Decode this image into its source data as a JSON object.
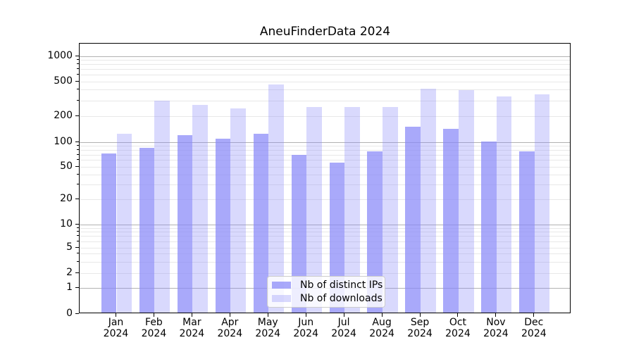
{
  "chart_data": {
    "type": "bar",
    "title": "AneuFinderData 2024",
    "months": [
      "Jan",
      "Feb",
      "Mar",
      "Apr",
      "May",
      "Jun",
      "Jul",
      "Aug",
      "Sep",
      "Oct",
      "Nov",
      "Dec"
    ],
    "year_line": "2024",
    "series": [
      {
        "name": "Nb of distinct IPs",
        "color": "#8888f8",
        "alpha": 0.72,
        "values": [
          73,
          85,
          120,
          110,
          125,
          70,
          56,
          78,
          150,
          143,
          102,
          77
        ]
      },
      {
        "name": "Nb of downloads",
        "color": "#8888f8",
        "alpha": 0.32,
        "values": [
          125,
          300,
          270,
          245,
          460,
          256,
          254,
          253,
          415,
          400,
          335,
          360
        ]
      }
    ],
    "y_ticks": [
      0,
      1,
      2,
      5,
      10,
      20,
      50,
      100,
      200,
      500,
      1000
    ],
    "y_scale": "symlog",
    "ylim": [
      0,
      1400
    ],
    "grid": true,
    "legend_position": "bottom-center",
    "axis_color": "#000000",
    "major_grid_color": "#b2b2b2",
    "minor_grid_color": "#e8e8e8"
  }
}
